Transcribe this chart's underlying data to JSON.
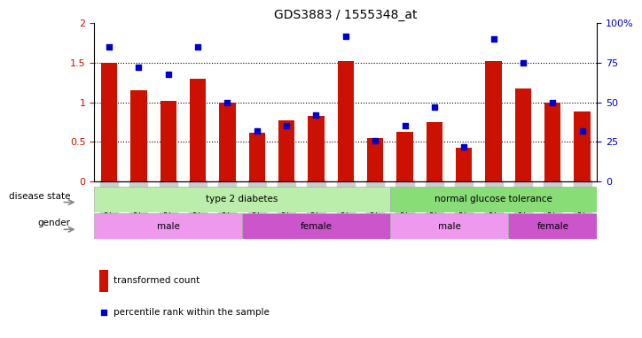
{
  "title": "GDS3883 / 1555348_at",
  "samples": [
    "GSM572808",
    "GSM572809",
    "GSM572811",
    "GSM572813",
    "GSM572815",
    "GSM572816",
    "GSM572807",
    "GSM572810",
    "GSM572812",
    "GSM572814",
    "GSM572800",
    "GSM572801",
    "GSM572804",
    "GSM572805",
    "GSM572802",
    "GSM572803",
    "GSM572806"
  ],
  "bar_values": [
    1.5,
    1.15,
    1.02,
    1.3,
    1.0,
    0.62,
    0.77,
    0.83,
    1.52,
    0.55,
    0.63,
    0.75,
    0.42,
    1.52,
    1.18,
    1.0,
    0.88
  ],
  "dot_values": [
    85,
    72,
    68,
    85,
    50,
    32,
    35,
    42,
    92,
    26,
    35,
    47,
    22,
    90,
    75,
    50,
    32
  ],
  "bar_color": "#cc1100",
  "dot_color": "#0000cc",
  "ylim_left": [
    0,
    2
  ],
  "ylim_right": [
    0,
    100
  ],
  "yticks_left": [
    0,
    0.5,
    1.0,
    1.5,
    2.0
  ],
  "ytick_labels_left": [
    "0",
    "0.5",
    "1",
    "1.5",
    "2"
  ],
  "yticks_right": [
    0,
    25,
    50,
    75,
    100
  ],
  "ytick_labels_right": [
    "0",
    "25",
    "50",
    "75",
    "100%"
  ],
  "hlines": [
    0.5,
    1.0,
    1.5
  ],
  "disease_state_groups": [
    {
      "label": "type 2 diabetes",
      "start": 0,
      "end": 10,
      "color": "#bbeeaa"
    },
    {
      "label": "normal glucose tolerance",
      "start": 10,
      "end": 17,
      "color": "#88dd77"
    }
  ],
  "gender_groups": [
    {
      "label": "male",
      "start": 0,
      "end": 5,
      "color": "#ee99ee"
    },
    {
      "label": "female",
      "start": 5,
      "end": 10,
      "color": "#cc55cc"
    },
    {
      "label": "male",
      "start": 10,
      "end": 14,
      "color": "#ee99ee"
    },
    {
      "label": "female",
      "start": 14,
      "end": 17,
      "color": "#cc55cc"
    }
  ],
  "legend_bar_label": "transformed count",
  "legend_dot_label": "percentile rank within the sample",
  "disease_state_label": "disease state",
  "gender_label": "gender",
  "tick_bg_color": "#cccccc",
  "bg_color": "#ffffff"
}
